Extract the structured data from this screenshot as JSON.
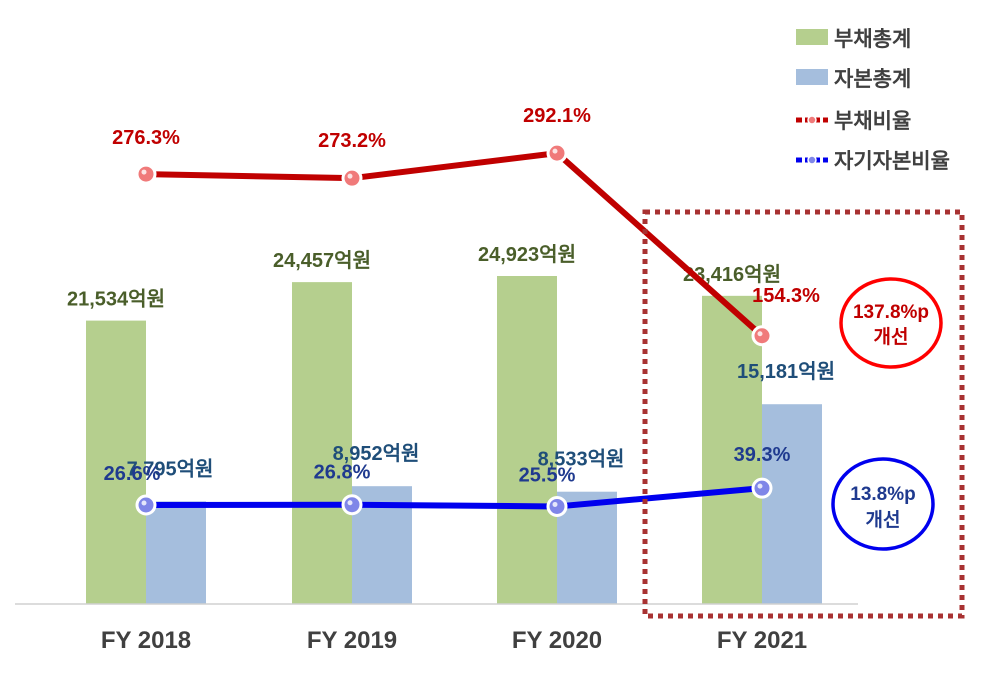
{
  "chart_data": {
    "type": "bar",
    "categories": [
      "FY 2018",
      "FY 2019",
      "FY 2020",
      "FY 2021"
    ],
    "unit_suffix": "억원",
    "percent_suffix": "%",
    "series": [
      {
        "name": "부채총계",
        "kind": "bar",
        "color": "#b5cf8e",
        "label_color": "#4a5e2a",
        "values": [
          21534,
          24457,
          24923,
          23416
        ],
        "labels": [
          "21,534",
          "24,457",
          "24,923",
          "23,416"
        ]
      },
      {
        "name": "자본총계",
        "kind": "bar",
        "color": "#a5bedd",
        "label_color": "#1f4e79",
        "values": [
          7795,
          8952,
          8533,
          15181
        ],
        "labels": [
          "7,795",
          "8,952",
          "8,533",
          "15,181"
        ]
      },
      {
        "name": "부채비율",
        "kind": "line",
        "color": "#c00000",
        "marker_color": "#f07a7a",
        "values": [
          276.3,
          273.2,
          292.1,
          154.3
        ],
        "labels": [
          "276.3",
          "273.2",
          "292.1",
          "154.3"
        ]
      },
      {
        "name": "자기자본비율",
        "kind": "line",
        "color": "#0000ee",
        "marker_color": "#7f86e8",
        "values": [
          26.6,
          26.8,
          25.5,
          39.3
        ],
        "labels": [
          "26.6",
          "26.8",
          "25.5",
          "39.3"
        ]
      }
    ],
    "annotations": [
      {
        "line1": "137.8%p",
        "line2": "개선",
        "color": "#ff0000",
        "text_color": "#c00000"
      },
      {
        "line1": "13.8%p",
        "line2": "개선",
        "color": "#0000ee",
        "text_color": "#1f3a8f"
      }
    ],
    "highlight_category": "FY 2021",
    "highlight_color": "#a83232",
    "legend_position": "top-right"
  }
}
